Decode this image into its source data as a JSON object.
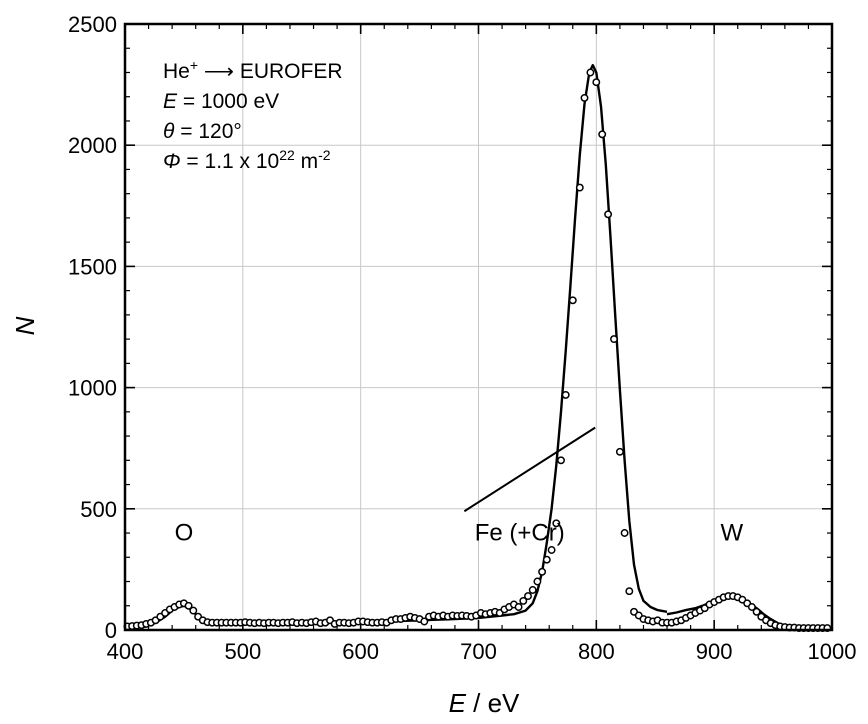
{
  "chart_data": {
    "type": "scatter",
    "xlabel_var": "E",
    "xlabel_unit": " / eV",
    "ylabel": "N",
    "xlim": [
      400,
      1000
    ],
    "ylim": [
      0,
      2500
    ],
    "xticks": [
      400,
      500,
      600,
      700,
      800,
      900,
      1000
    ],
    "yticks": [
      0,
      500,
      1000,
      1500,
      2000,
      2500
    ],
    "grid": true,
    "info": {
      "line1": {
        "ion": "He",
        "sup": "+",
        "arrow": " ⟶ ",
        "target": "EUROFER"
      },
      "line2": {
        "var": "E",
        "rest": " = 1000 eV"
      },
      "line3": {
        "var": "θ",
        "rest": " = 120°"
      },
      "line4": {
        "var": "Φ",
        "rest": " = 1.1 x 10",
        "exp": "22",
        "unit": " m",
        "unitexp": "-2"
      }
    },
    "peak_labels": [
      {
        "text": "O",
        "x": 450,
        "y": 370
      },
      {
        "text": "Fe (+Cr)",
        "x": 735,
        "y": 370
      },
      {
        "text": "W",
        "x": 915,
        "y": 370
      }
    ],
    "annotation_line": {
      "from": [
        688,
        490
      ],
      "to": [
        799,
        835
      ]
    },
    "series": [
      {
        "kind": "markers",
        "marker": "open-circle",
        "points": [
          [
            402,
            15
          ],
          [
            406,
            16
          ],
          [
            410,
            18
          ],
          [
            414,
            20
          ],
          [
            418,
            25
          ],
          [
            422,
            30
          ],
          [
            426,
            40
          ],
          [
            430,
            55
          ],
          [
            434,
            70
          ],
          [
            438,
            85
          ],
          [
            442,
            95
          ],
          [
            446,
            105
          ],
          [
            450,
            110
          ],
          [
            454,
            100
          ],
          [
            458,
            80
          ],
          [
            462,
            55
          ],
          [
            466,
            40
          ],
          [
            470,
            32
          ],
          [
            474,
            30
          ],
          [
            478,
            30
          ],
          [
            482,
            30
          ],
          [
            486,
            30
          ],
          [
            490,
            30
          ],
          [
            494,
            30
          ],
          [
            498,
            30
          ],
          [
            502,
            32
          ],
          [
            506,
            30
          ],
          [
            510,
            28
          ],
          [
            514,
            30
          ],
          [
            518,
            28
          ],
          [
            522,
            30
          ],
          [
            526,
            30
          ],
          [
            530,
            28
          ],
          [
            534,
            30
          ],
          [
            538,
            30
          ],
          [
            542,
            32
          ],
          [
            546,
            28
          ],
          [
            550,
            30
          ],
          [
            554,
            28
          ],
          [
            558,
            32
          ],
          [
            562,
            35
          ],
          [
            566,
            28
          ],
          [
            570,
            30
          ],
          [
            574,
            40
          ],
          [
            578,
            25
          ],
          [
            582,
            30
          ],
          [
            586,
            30
          ],
          [
            590,
            28
          ],
          [
            594,
            30
          ],
          [
            598,
            35
          ],
          [
            602,
            35
          ],
          [
            606,
            32
          ],
          [
            610,
            30
          ],
          [
            614,
            30
          ],
          [
            618,
            32
          ],
          [
            622,
            30
          ],
          [
            626,
            40
          ],
          [
            630,
            45
          ],
          [
            634,
            45
          ],
          [
            638,
            50
          ],
          [
            642,
            55
          ],
          [
            646,
            50
          ],
          [
            650,
            45
          ],
          [
            654,
            35
          ],
          [
            658,
            55
          ],
          [
            662,
            60
          ],
          [
            666,
            55
          ],
          [
            670,
            60
          ],
          [
            674,
            55
          ],
          [
            678,
            60
          ],
          [
            682,
            58
          ],
          [
            686,
            60
          ],
          [
            690,
            58
          ],
          [
            694,
            55
          ],
          [
            698,
            60
          ],
          [
            702,
            70
          ],
          [
            706,
            65
          ],
          [
            710,
            70
          ],
          [
            714,
            75
          ],
          [
            718,
            70
          ],
          [
            722,
            85
          ],
          [
            726,
            95
          ],
          [
            730,
            105
          ],
          [
            734,
            95
          ],
          [
            738,
            120
          ],
          [
            742,
            140
          ],
          [
            746,
            165
          ],
          [
            750,
            200
          ],
          [
            754,
            240
          ],
          [
            758,
            290
          ],
          [
            762,
            330
          ],
          [
            766,
            440
          ],
          [
            770,
            700
          ],
          [
            774,
            970
          ],
          [
            780,
            1360
          ],
          [
            786,
            1825
          ],
          [
            790,
            2195
          ],
          [
            795,
            2300
          ],
          [
            800,
            2260
          ],
          [
            805,
            2045
          ],
          [
            810,
            1715
          ],
          [
            815,
            1200
          ],
          [
            820,
            735
          ],
          [
            824,
            400
          ],
          [
            828,
            160
          ],
          [
            832,
            75
          ],
          [
            836,
            60
          ],
          [
            840,
            45
          ],
          [
            844,
            40
          ],
          [
            848,
            35
          ],
          [
            852,
            40
          ],
          [
            856,
            30
          ],
          [
            860,
            30
          ],
          [
            864,
            30
          ],
          [
            868,
            35
          ],
          [
            872,
            40
          ],
          [
            876,
            50
          ],
          [
            880,
            60
          ],
          [
            884,
            70
          ],
          [
            888,
            80
          ],
          [
            892,
            90
          ],
          [
            896,
            105
          ],
          [
            900,
            115
          ],
          [
            904,
            125
          ],
          [
            908,
            135
          ],
          [
            912,
            140
          ],
          [
            916,
            140
          ],
          [
            920,
            135
          ],
          [
            924,
            125
          ],
          [
            928,
            110
          ],
          [
            932,
            95
          ],
          [
            936,
            75
          ],
          [
            940,
            55
          ],
          [
            944,
            40
          ],
          [
            948,
            28
          ],
          [
            952,
            20
          ],
          [
            956,
            15
          ],
          [
            960,
            12
          ],
          [
            964,
            10
          ],
          [
            968,
            10
          ],
          [
            972,
            8
          ],
          [
            976,
            8
          ],
          [
            980,
            8
          ],
          [
            984,
            8
          ],
          [
            988,
            8
          ],
          [
            992,
            8
          ],
          [
            996,
            8
          ]
        ]
      },
      {
        "kind": "line",
        "segments": [
          [
            [
              402,
              8
            ],
            [
              410,
              10
            ],
            [
              418,
              15
            ],
            [
              426,
              30
            ],
            [
              434,
              55
            ],
            [
              440,
              80
            ],
            [
              446,
              95
            ],
            [
              450,
              100
            ],
            [
              454,
              92
            ],
            [
              458,
              75
            ],
            [
              462,
              55
            ],
            [
              466,
              42
            ],
            [
              470,
              35
            ],
            [
              480,
              33
            ],
            [
              500,
              32
            ],
            [
              540,
              32
            ],
            [
              580,
              32
            ],
            [
              620,
              35
            ],
            [
              650,
              40
            ],
            [
              680,
              45
            ],
            [
              700,
              50
            ],
            [
              720,
              60
            ],
            [
              730,
              65
            ],
            [
              740,
              80
            ],
            [
              746,
              110
            ],
            [
              750,
              160
            ],
            [
              754,
              240
            ],
            [
              758,
              360
            ],
            [
              762,
              500
            ],
            [
              766,
              680
            ],
            [
              770,
              900
            ],
            [
              774,
              1150
            ],
            [
              778,
              1420
            ],
            [
              782,
              1700
            ],
            [
              786,
              1960
            ],
            [
              790,
              2170
            ],
            [
              794,
              2300
            ],
            [
              797,
              2330
            ],
            [
              800,
              2300
            ],
            [
              804,
              2160
            ],
            [
              808,
              1920
            ],
            [
              812,
              1620
            ],
            [
              816,
              1300
            ],
            [
              820,
              990
            ],
            [
              824,
              700
            ],
            [
              828,
              450
            ],
            [
              832,
              270
            ],
            [
              836,
              170
            ],
            [
              840,
              120
            ],
            [
              846,
              95
            ],
            [
              852,
              82
            ],
            [
              860,
              75
            ]
          ],
          [
            [
              860,
              65
            ],
            [
              868,
              72
            ],
            [
              876,
              82
            ],
            [
              884,
              90
            ],
            [
              890,
              100
            ],
            [
              896,
              112
            ],
            [
              902,
              122
            ],
            [
              908,
              130
            ],
            [
              914,
              134
            ],
            [
              918,
              134
            ],
            [
              922,
              130
            ],
            [
              926,
              122
            ],
            [
              930,
              110
            ],
            [
              936,
              90
            ],
            [
              942,
              65
            ],
            [
              948,
              45
            ],
            [
              954,
              28
            ],
            [
              960,
              18
            ],
            [
              968,
              12
            ],
            [
              980,
              10
            ],
            [
              1000,
              10
            ]
          ]
        ]
      }
    ]
  }
}
